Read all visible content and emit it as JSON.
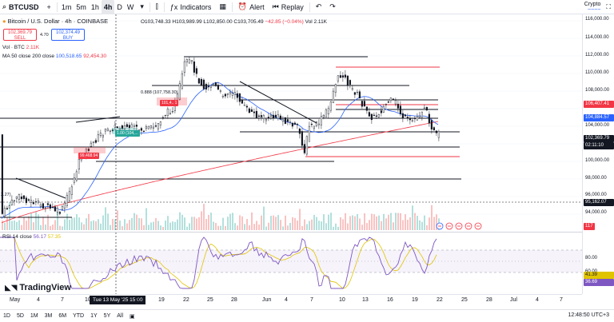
{
  "topbar": {
    "symbol": "BTCUSD",
    "add_symbol": "+",
    "timeframes": [
      "1m",
      "5m",
      "1h",
      "4h",
      "D",
      "W"
    ],
    "active_timeframe": "4h",
    "indicators_label": "Indicators",
    "alert_label": "Alert",
    "replay_label": "Replay",
    "crypto_label": "Crypto",
    "crypto_sub": "~~~~"
  },
  "legend": {
    "title": "Bitcoin / U.S. Dollar · 4h · COINBASE",
    "ohlc": "O103,748.33 H103,989.99 L102,850.00 C103,705.49",
    "change": "−42.85 (−0.04%)",
    "vol": "Vol 2.11K",
    "sell_price": "102,369.79",
    "sell_label": "SELL",
    "spread": "4.70",
    "buy_price": "102,374.49",
    "buy_label": "BUY",
    "vol_line_label": "Vol · BTC",
    "vol_line_value": "2.11K",
    "ma_label": "MA 50 close 200 close",
    "ma50_value": "100,518.65",
    "ma200_value": "92,454.30",
    "rsi_label": "RSI 14 close",
    "rsi_value": "56.17",
    "rsi_ma_value": "57.35"
  },
  "chart_notes": {
    "fib": "0.888 (107,758.30)",
    "tag1": "99,468.94",
    "tag2": "101,4.. 1",
    "tag3": "1.00 (104,...",
    "left_val": "2.27)"
  },
  "price_scale": {
    "labels": [
      "116,000.00",
      "114,000.00",
      "112,000.00",
      "110,000.00",
      "108,000.00",
      "106,000.00",
      "104,000.00",
      "102,000.00",
      "100,000.00",
      "98,000.00",
      "96,000.00",
      "94,000.00"
    ],
    "tag_red": "106,407.41",
    "tag_blue": "104,884.57",
    "tag_last_price": "102,369.79",
    "tag_countdown": "02:11:10",
    "tag_dark": "95,162.07",
    "tag_vol": "117"
  },
  "rsi_scale": {
    "labels": [
      "80.00",
      "60.00"
    ],
    "tag_yellow": "41.39",
    "tag_purple": "36.69"
  },
  "time_axis": {
    "ticks": [
      "May",
      "4",
      "7",
      "10",
      "16",
      "19",
      "22",
      "25",
      "28",
      "Jun",
      "4",
      "7",
      "10",
      "13",
      "16",
      "19",
      "22",
      "25",
      "28",
      "Jul",
      "4",
      "7"
    ],
    "cursor_label": "Tue 13 May '25 15:00"
  },
  "bottombar": {
    "ranges": [
      "1D",
      "5D",
      "1M",
      "3M",
      "6M",
      "YTD",
      "1Y",
      "5Y",
      "All"
    ],
    "clock": "12:48:50 UTC+3"
  },
  "watermark": "TradingView",
  "colors": {
    "up": "#26a69a",
    "down": "#ef5350",
    "candle": "#131722",
    "ma50": "#2962ff",
    "ma200": "#f23645",
    "rsi": "#7e57c2",
    "rsi_ma": "#e0c400"
  }
}
